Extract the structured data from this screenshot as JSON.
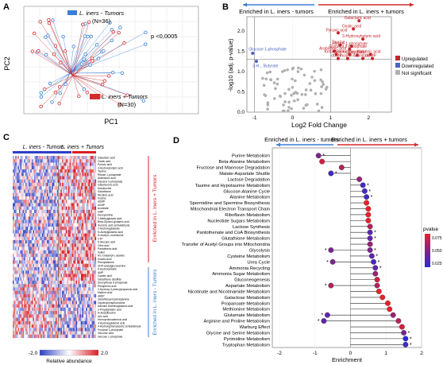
{
  "panels": {
    "A": "A",
    "B": "B",
    "C": "C",
    "D": "D"
  },
  "pca": {
    "legend_blue": "L. iners - Tumors",
    "legend_blue_n": "(N=36)",
    "legend_red": "L. iners + Tumors",
    "legend_red_n": "(N=30)",
    "pvalue": "p <0,0005",
    "xlabel": "PC1",
    "ylabel": "PC2",
    "colors": {
      "minus": "#3a7fd5",
      "plus": "#d62a2a"
    }
  },
  "volcano": {
    "header_left": "Enriched in L. iners - tumors",
    "header_right": "Enriched in L. iners + tumors",
    "xlabel": "Log2 Fold Change",
    "ylabel": "-log10 (adj. p-value)",
    "legend": [
      "Upregulated",
      "Downregulated",
      "Not significant"
    ],
    "down_labels": [
      "Glucose 1-phosphate",
      "3-H... Butyrate"
    ],
    "up_labels": [
      "Galactaric acid",
      "Oxalic acid",
      "Pyruvic acid",
      "3-Hydroxybutyric acid",
      "Taurine",
      "Ribose 1-phosphate",
      "Glycerol 3-phosphate",
      "Arabinonic acid",
      "Galacturonic acid",
      "Ketoleucine",
      "Glutathione",
      "Nicotinic acid",
      "dCMP",
      "Inosine",
      "dUMP",
      "Aconitate"
    ],
    "xticks": [
      "-1",
      "0",
      "1",
      "2"
    ],
    "yticks": [
      "0.0",
      "0.5",
      "1.0",
      "1.5",
      "2.0"
    ],
    "colors": {
      "up": "#c0262d",
      "down": "#4a63c8",
      "ns": "#b0b0b0"
    }
  },
  "heatmap": {
    "header_left": "L. iners - Tumors",
    "header_right": "L. iners + Tumors",
    "side_top": "Enriched in L. iners + Tumors",
    "side_bottom": "Enriched in L. iners - Tumors",
    "scale_min": "-2.0",
    "scale_max": "2.0",
    "scale_label": "Relative abundance",
    "rows": [
      "Galactaric acid",
      "Oxalic acid",
      "Pyruvic acid",
      "3-Hydroxybutyric acid",
      "Taurine",
      "Ribose 1-phosphate",
      "Arabinonic acid",
      "Glycerol 3-phosphate",
      "Galacturonic acid",
      "Ketoleucine",
      "Glutathione",
      "Nicotinic acid",
      "Inosine",
      "dUMP",
      "dCMP",
      "Aconitate",
      "GMP",
      "Deoxyuridine",
      "2-Methylglutaric acid",
      "Beta-Glycero-glutamic acid",
      "Succinic acid semialdehyde",
      "2-Hydroxyglutarate",
      "N-Acetylglutamic acid",
      "N-Acetyl-L-methionine",
      "CTP",
      "5-Glucaric acid",
      "Citric acid",
      "Pantothenic acid",
      "Xylitol",
      "N-L-Glutamyl-L-alanine",
      "Inositol acid",
      "Phenylalanine",
      "UDP-acetylglucosamine",
      "5-Hydroxyindole",
      "AMP",
      "Cysteic acid",
      "Glutathione disulfide",
      "Deoxyribose 5-phosphate",
      "Phosphoric acid",
      "2-Hydroxy-3-phenylpropanoic acid",
      "Malonic acid",
      "dADP",
      "Glutathionyl-hydroxylamine",
      "Glycerophosphocholine",
      "Adenine Diaminoglutamic acid",
      "2-Propylglutaric acid",
      "N-Acetylleucine",
      "Uric acid",
      "Homoprotocatechuic acid",
      "4-Hydroxyglutamic acid",
      "4-Hydroxyphenylacetic semialdehyde",
      "Fructose 1-phosphate",
      "Gluconic acid",
      "Glucose 1-phosphate"
    ],
    "colors": {
      "blue": "#2c3fc4",
      "red": "#d91f26"
    }
  },
  "dotplot": {
    "header_left": "Enriched in L. iners - tumors",
    "header_right": "Enriched in L. iners + tumors",
    "xlabel": "Enrichment",
    "xticks": [
      "-2",
      "-1",
      "0",
      "1",
      "2"
    ],
    "legend_title": "pvalue",
    "legend_ticks": [
      "0.075",
      "0.050",
      "0.025"
    ],
    "pathways": [
      {
        "name": "Purine Metabolism",
        "value": -0.9,
        "p": 0.04
      },
      {
        "name": "Beta-Alanine Metabolism",
        "value": -0.8,
        "p": 0.07
      },
      {
        "name": "Fructose and Mannose Degradation",
        "value": -0.25,
        "p": 0.06
      },
      {
        "name": "Malate-Aspartate Shuttle",
        "value": -0.55,
        "p": 0.02
      },
      {
        "name": "Lactose Degradation",
        "value": 0.25,
        "p": 0.05
      },
      {
        "name": "Taurine and Hypotaurine Metabolism",
        "value": 0.35,
        "p": 0.02
      },
      {
        "name": "Glucose-Alanine Cycle",
        "value": 0.4,
        "p": 0.02
      },
      {
        "name": "Alanine Metabolism",
        "value": 0.45,
        "p": 0.02
      },
      {
        "name": "Spermidine and Spermine Biosynthesis",
        "value": 0.45,
        "p": 0.08
      },
      {
        "name": "Mitochondrial Electron Transport Chain",
        "value": 0.5,
        "p": 0.08
      },
      {
        "name": "Riboflavin Metabolism",
        "value": 0.5,
        "p": 0.08
      },
      {
        "name": "Nucleotide Sugars Metabolism",
        "value": 0.5,
        "p": 0.08
      },
      {
        "name": "Lactose Synthesis",
        "value": 0.55,
        "p": 0.06
      },
      {
        "name": "Pantothenate and CoA Biosynthesis",
        "value": 0.55,
        "p": 0.03
      },
      {
        "name": "Glutathione Metabolism",
        "value": 0.55,
        "p": 0.03
      },
      {
        "name": "Transfer of Acetyl Groups into Mitochondria",
        "value": 0.55,
        "p": 0.05
      },
      {
        "name": "Glycolysis",
        "value": 0.55,
        "p": 0.04
      },
      {
        "name": "Cysteine Metabolism",
        "value": 0.6,
        "p": 0.03
      },
      {
        "name": "Urea Cycle",
        "value": 0.65,
        "p": 0.02
      },
      {
        "name": "Ammonia Recycling",
        "value": 0.7,
        "p": 0.03
      },
      {
        "name": "Ammonia Sugar Metabolism",
        "value": 0.7,
        "p": 0.05
      },
      {
        "name": "Gluconeogenesis",
        "value": 0.75,
        "p": 0.07
      },
      {
        "name": "Aspartate Metabolism",
        "value": 0.75,
        "p": 0.06
      },
      {
        "name": "Nicotinate and Nicotinamide Metabolism",
        "value": 0.8,
        "p": 0.08
      },
      {
        "name": "Galactose Metabolism",
        "value": 0.9,
        "p": 0.08
      },
      {
        "name": "Propanoate Metabolism",
        "value": 1.05,
        "p": 0.08
      },
      {
        "name": "Methionine Metabolism",
        "value": 1.1,
        "p": 0.08
      },
      {
        "name": "Glutamate Metabolism",
        "value": 1.2,
        "p": 0.05
      },
      {
        "name": "Arginine and Proline Metabolism",
        "value": 1.35,
        "p": 0.06
      },
      {
        "name": "Warburg Effect",
        "value": 1.45,
        "p": 0.07
      },
      {
        "name": "Glycine and Serine Metabolism",
        "value": 1.5,
        "p": 0.04
      },
      {
        "name": "Pyrimidine Metabolism",
        "value": 1.55,
        "p": 0.01
      },
      {
        "name": "Tryptophan Metabolism",
        "value": 1.55,
        "p": 0.02
      }
    ],
    "left_mirror": [
      {
        "name": "Glycolysis",
        "value": -0.55,
        "p": 0.04
      },
      {
        "name": "Urea Cycle",
        "value": -0.5,
        "p": 0.04
      },
      {
        "name": "Aspartate Metabolism",
        "value": -0.55,
        "p": 0.06
      },
      {
        "name": "Glutamate Metabolism",
        "value": -0.65,
        "p": 0.03
      },
      {
        "name": "Arginine and Proline Metabolism",
        "value": -0.75,
        "p": 0.03
      }
    ]
  }
}
